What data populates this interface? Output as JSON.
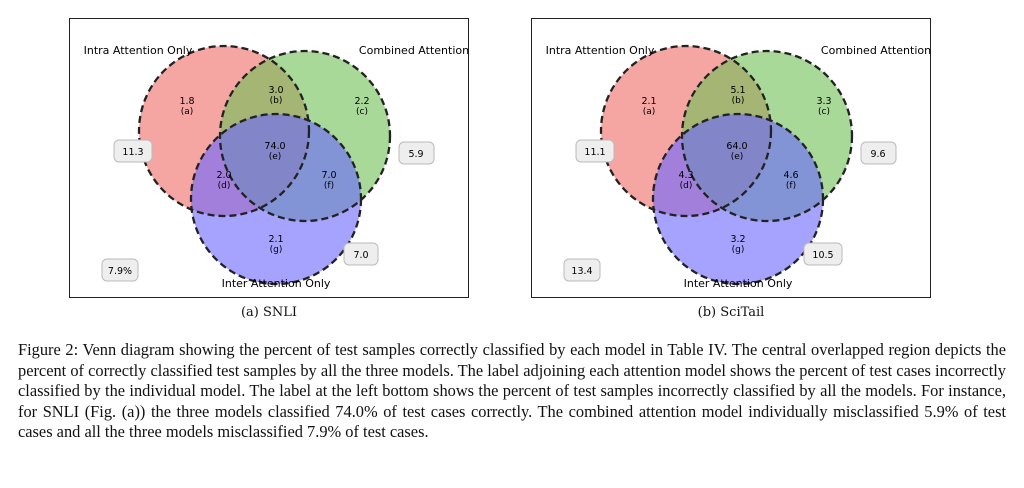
{
  "figure": {
    "caption": "Figure 2: Venn diagram showing the percent of test samples correctly classified by each model in Table IV. The central overlapped region depicts the percent of correctly classified test samples by all the three models. The label adjoining each attention model shows the percent of test cases incorrectly classified by the individual model. The label at the left bottom shows the percent of test samples incorrectly classified by all the models. For instance, for SNLI (Fig. (a)) the three models classified 74.0% of test cases correctly. The combined attention model individually misclassified 5.9% of test cases and all the three models misclassified 7.9% of test cases."
  },
  "colors": {
    "intra": "#ee6a66",
    "combined": "#6fbf55",
    "inter": "#6a66ff",
    "outline": "#222222",
    "box_fill": "#eeeeee",
    "box_stroke": "#bbbbbb"
  },
  "panels": [
    {
      "subcaption": "(a) SNLI",
      "set_labels": {
        "intra": "Intra Attention Only",
        "combined": "Combined Attention",
        "inter": "Inter Attention Only"
      },
      "regions": {
        "a": {
          "value": "1.8",
          "letter": "(a)"
        },
        "b": {
          "value": "3.0",
          "letter": "(b)"
        },
        "c": {
          "value": "2.2",
          "letter": "(c)"
        },
        "d": {
          "value": "2.0",
          "letter": "(d)"
        },
        "e": {
          "value": "74.0",
          "letter": "(e)"
        },
        "f": {
          "value": "7.0",
          "letter": "(f)"
        },
        "g": {
          "value": "2.1",
          "letter": "(g)"
        }
      },
      "boxes": {
        "intra": "11.3",
        "combined": "5.9",
        "inter": "7.0",
        "all": "7.9%"
      }
    },
    {
      "subcaption": "(b) SciTail",
      "set_labels": {
        "intra": "Intra Attention Only",
        "combined": "Combined Attention",
        "inter": "Inter Attention Only"
      },
      "regions": {
        "a": {
          "value": "2.1",
          "letter": "(a)"
        },
        "b": {
          "value": "5.1",
          "letter": "(b)"
        },
        "c": {
          "value": "3.3",
          "letter": "(c)"
        },
        "d": {
          "value": "4.3",
          "letter": "(d)"
        },
        "e": {
          "value": "64.0",
          "letter": "(e)"
        },
        "f": {
          "value": "4.6",
          "letter": "(f)"
        },
        "g": {
          "value": "3.2",
          "letter": "(g)"
        }
      },
      "boxes": {
        "intra": "11.1",
        "combined": "9.6",
        "inter": "10.5",
        "all": "13.4"
      }
    }
  ]
}
